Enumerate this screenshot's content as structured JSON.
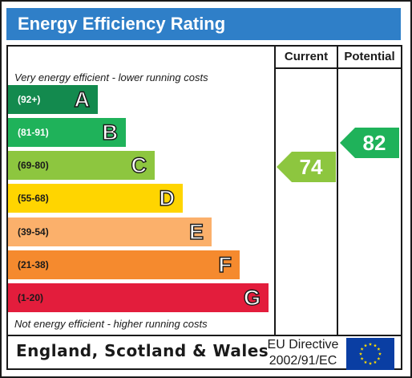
{
  "title": "Energy Efficiency Rating",
  "columns": {
    "current": "Current",
    "potential": "Potential"
  },
  "top_note": "Very energy efficient - lower running costs",
  "bottom_note": "Not energy efficient - higher running costs",
  "bands": [
    {
      "range": "(92+)",
      "letter": "A",
      "color": "#138a4e"
    },
    {
      "range": "(81-91)",
      "letter": "B",
      "color": "#1fb25a"
    },
    {
      "range": "(69-80)",
      "letter": "C",
      "color": "#8dc63f"
    },
    {
      "range": "(55-68)",
      "letter": "D",
      "color": "#ffd500"
    },
    {
      "range": "(39-54)",
      "letter": "E",
      "color": "#fbb06b"
    },
    {
      "range": "(21-38)",
      "letter": "F",
      "color": "#f58a2e"
    },
    {
      "range": "(1-20)",
      "letter": "G",
      "color": "#e31d3c"
    }
  ],
  "current": {
    "value": "74",
    "band": "C",
    "color": "#8dc63f"
  },
  "potential": {
    "value": "82",
    "band": "B",
    "color": "#1fb25a"
  },
  "footer": {
    "region": "England, Scotland & Wales",
    "directive_line1": "EU Directive",
    "directive_line2": "2002/91/EC",
    "flag_icon": "eu-flag-icon",
    "flag_color": "#0a3ea3",
    "star_color": "#ffdd00"
  }
}
